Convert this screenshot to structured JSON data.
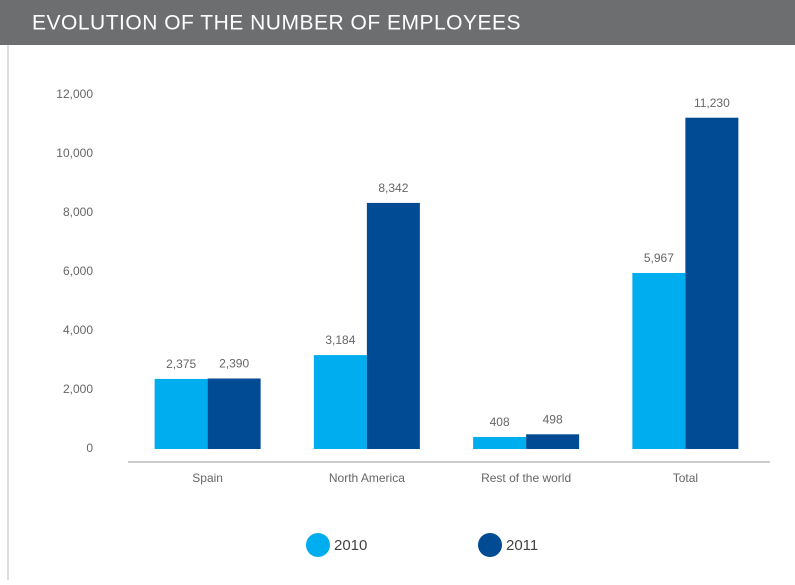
{
  "chart_data": {
    "type": "bar",
    "title": "EVOLUTION OF THE NUMBER OF EMPLOYEES",
    "categories": [
      "Spain",
      "North America",
      "Rest of the world",
      "Total"
    ],
    "series": [
      {
        "name": "2010",
        "color": "#00aeef",
        "values": [
          2375,
          3184,
          408,
          5967
        ],
        "value_labels": [
          "2,375",
          "3,184",
          "408",
          "5,967"
        ]
      },
      {
        "name": "2011",
        "color": "#004b93",
        "values": [
          2390,
          8342,
          498,
          11230
        ],
        "value_labels": [
          "2,390",
          "8,342",
          "498",
          "11,230"
        ]
      }
    ],
    "ylim": [
      0,
      12000
    ],
    "yticks": [
      0,
      {
        "value": 2000,
        "label": "2,000"
      },
      {
        "value": 4000,
        "label": "4,000"
      },
      {
        "value": 6000,
        "label": "6,000"
      },
      {
        "value": 8000,
        "label": "8,000"
      },
      {
        "value": 10000,
        "label": "10,000"
      },
      {
        "value": 12000,
        "label": "12,000"
      }
    ],
    "grid": false,
    "legend": "bottom"
  }
}
